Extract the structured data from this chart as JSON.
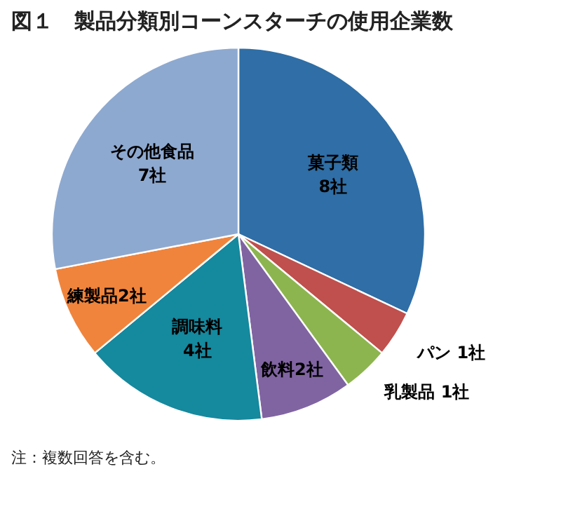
{
  "chart_data": {
    "type": "pie",
    "title": "図１　製品分類別コーンスターチの使用企業数",
    "categories": [
      "菓子類",
      "パン",
      "乳製品",
      "飲料",
      "調味料",
      "練製品",
      "その他食品"
    ],
    "values": [
      8,
      1,
      1,
      2,
      4,
      2,
      7
    ],
    "value_labels": [
      "8社",
      "1社",
      "1社",
      "2社",
      "4社",
      "2社",
      "7社"
    ],
    "colors": [
      "#2f6ea6",
      "#c0504d",
      "#8db54f",
      "#8064a2",
      "#15899e",
      "#f0843c",
      "#8ea9d0"
    ],
    "annotations": [
      "注：複数回答を含む。"
    ]
  }
}
